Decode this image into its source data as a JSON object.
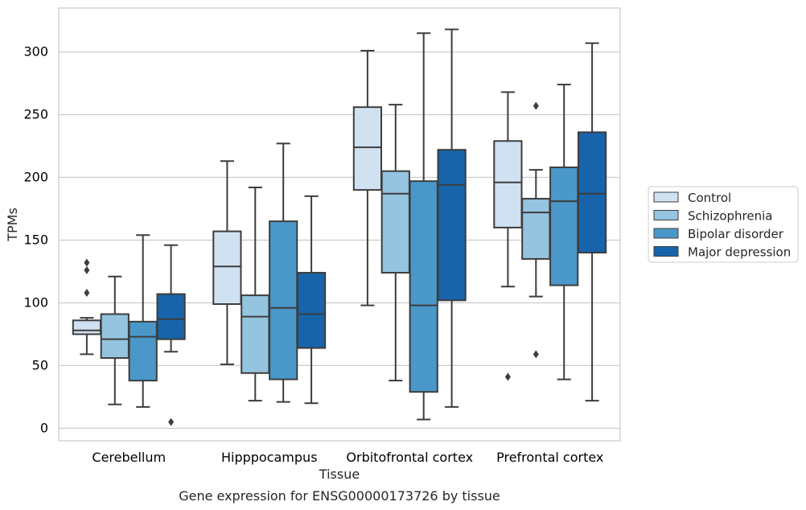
{
  "chart_data": {
    "type": "box",
    "caption": "Gene expression for ENSG00000173726 by tissue",
    "xlabel": "Tissue",
    "ylabel": "TPMs",
    "ylim": [
      -10,
      335
    ],
    "yticks": [
      0,
      50,
      100,
      150,
      200,
      250,
      300
    ],
    "grid": "horizontal",
    "legend_position": "right, outside",
    "categories": [
      "Cerebellum",
      "Hipppocampus",
      "Orbitofrontal cortex",
      "Prefrontal cortex"
    ],
    "series": [
      {
        "name": "Control",
        "color": "#d0e1f2",
        "boxes": [
          {
            "whislo": 59,
            "q1": 75,
            "med": 78,
            "q3": 86,
            "whishi": 88,
            "fliers": [
              108,
              126,
              132
            ]
          },
          {
            "whislo": 51,
            "q1": 99,
            "med": 129,
            "q3": 157,
            "whishi": 213,
            "fliers": []
          },
          {
            "whislo": 98,
            "q1": 190,
            "med": 224,
            "q3": 256,
            "whishi": 301,
            "fliers": []
          },
          {
            "whislo": 113,
            "q1": 160,
            "med": 196,
            "q3": 229,
            "whishi": 268,
            "fliers": [
              41
            ]
          }
        ]
      },
      {
        "name": "Schizophrenia",
        "color": "#94c4df",
        "boxes": [
          {
            "whislo": 19,
            "q1": 56,
            "med": 71,
            "q3": 91,
            "whishi": 121,
            "fliers": []
          },
          {
            "whislo": 22,
            "q1": 44,
            "med": 89,
            "q3": 106,
            "whishi": 192,
            "fliers": []
          },
          {
            "whislo": 38,
            "q1": 124,
            "med": 187,
            "q3": 205,
            "whishi": 258,
            "fliers": []
          },
          {
            "whislo": 105,
            "q1": 135,
            "med": 172,
            "q3": 183,
            "whishi": 206,
            "fliers": [
              59,
              257
            ]
          }
        ]
      },
      {
        "name": "Bipolar disorder",
        "color": "#4a98c9",
        "boxes": [
          {
            "whislo": 17,
            "q1": 38,
            "med": 73,
            "q3": 85,
            "whishi": 154,
            "fliers": []
          },
          {
            "whislo": 21,
            "q1": 39,
            "med": 96,
            "q3": 165,
            "whishi": 227,
            "fliers": []
          },
          {
            "whislo": 7,
            "q1": 29,
            "med": 98,
            "q3": 197,
            "whishi": 315,
            "fliers": []
          },
          {
            "whislo": 39,
            "q1": 114,
            "med": 181,
            "q3": 208,
            "whishi": 274,
            "fliers": []
          }
        ]
      },
      {
        "name": "Major depression",
        "color": "#1764ab",
        "boxes": [
          {
            "whislo": 61,
            "q1": 71,
            "med": 87,
            "q3": 107,
            "whishi": 146,
            "fliers": [
              5
            ]
          },
          {
            "whislo": 20,
            "q1": 64,
            "med": 91,
            "q3": 124,
            "whishi": 185,
            "fliers": []
          },
          {
            "whislo": 17,
            "q1": 102,
            "med": 194,
            "q3": 222,
            "whishi": 318,
            "fliers": []
          },
          {
            "whislo": 22,
            "q1": 140,
            "med": 187,
            "q3": 236,
            "whishi": 307,
            "fliers": []
          }
        ]
      }
    ]
  }
}
